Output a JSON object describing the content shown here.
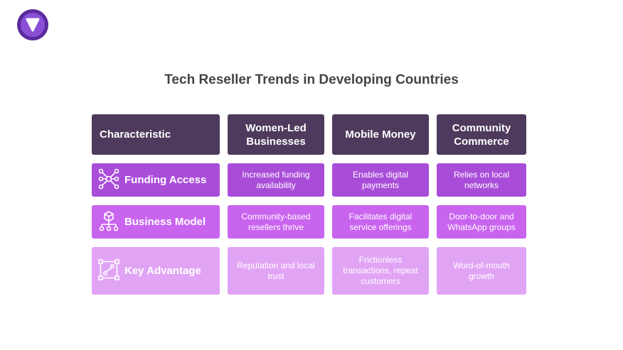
{
  "title": "Tech Reseller Trends in Developing Countries",
  "colors": {
    "header": "#4e3a5c",
    "row1": "#a94dd9",
    "row2": "#c964ef",
    "row3": "#e1a4f5",
    "logo": "#5b2a9e"
  },
  "table": {
    "headers": [
      "Characteristic",
      "Women-Led Businesses",
      "Mobile Money",
      "Community Commerce"
    ],
    "rows": [
      {
        "icon": "network-nodes-icon",
        "label": "Funding Access",
        "cells": [
          "Increased funding availability",
          "Enables digital payments",
          "Relies on local networks"
        ]
      },
      {
        "icon": "hierarchy-cube-icon",
        "label": "Business Model",
        "cells": [
          "Community-based resellers thrive",
          "Facilitates digital service offerings",
          "Door-to-door and WhatsApp groups"
        ]
      },
      {
        "icon": "vector-path-icon",
        "label": "Key Advantage",
        "cells": [
          "Reputation and local trust",
          "Frictionless transactions, repeat customers",
          "Word-of-mouth growth"
        ]
      }
    ]
  }
}
